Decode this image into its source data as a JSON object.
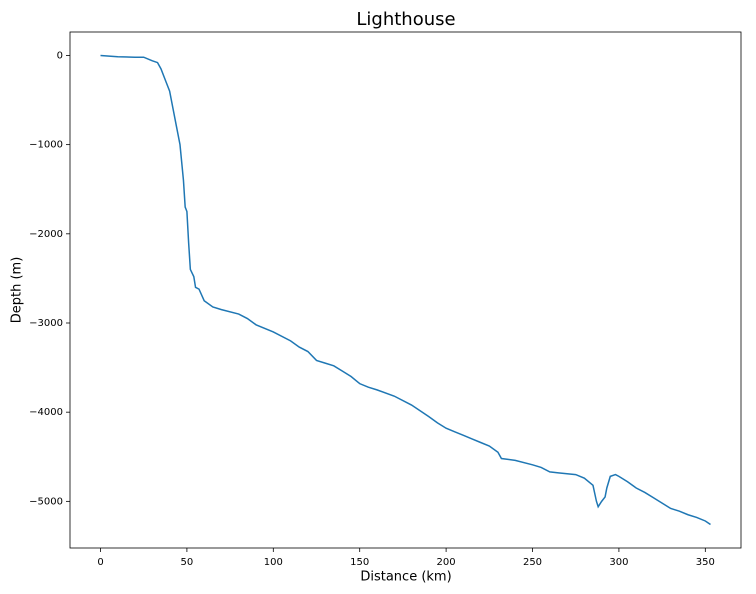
{
  "chart_data": {
    "type": "line",
    "title": "Lighthouse",
    "x_label": "Distance (km)",
    "y_label": "Depth (m)",
    "x": [
      0,
      10,
      20,
      25,
      30,
      33,
      35,
      38,
      40,
      42,
      44,
      46,
      47,
      48,
      49,
      50,
      51,
      52,
      54,
      55,
      57,
      60,
      65,
      70,
      80,
      85,
      90,
      100,
      110,
      115,
      120,
      125,
      130,
      135,
      140,
      145,
      150,
      155,
      160,
      170,
      180,
      190,
      195,
      200,
      205,
      210,
      215,
      220,
      225,
      230,
      232,
      240,
      250,
      255,
      260,
      265,
      270,
      275,
      280,
      285,
      287,
      288,
      290,
      292,
      293,
      295,
      298,
      300,
      305,
      310,
      315,
      320,
      325,
      330,
      335,
      340,
      345,
      350,
      353
    ],
    "series": [
      {
        "color": "#1f77b4",
        "values": [
          0,
          -15,
          -20,
          -20,
          -60,
          -80,
          -150,
          -300,
          -400,
          -600,
          -800,
          -1000,
          -1200,
          -1400,
          -1700,
          -1750,
          -2100,
          -2400,
          -2480,
          -2600,
          -2620,
          -2750,
          -2820,
          -2850,
          -2900,
          -2950,
          -3020,
          -3100,
          -3200,
          -3270,
          -3320,
          -3420,
          -3450,
          -3480,
          -3540,
          -3600,
          -3680,
          -3720,
          -3750,
          -3820,
          -3920,
          -4050,
          -4120,
          -4180,
          -4220,
          -4260,
          -4300,
          -4340,
          -4380,
          -4450,
          -4520,
          -4540,
          -4590,
          -4620,
          -4670,
          -4680,
          -4690,
          -4700,
          -4740,
          -4820,
          -5000,
          -5060,
          -5000,
          -4950,
          -4850,
          -4720,
          -4700,
          -4720,
          -4780,
          -4850,
          -4900,
          -4960,
          -5020,
          -5080,
          -5110,
          -5150,
          -5180,
          -5220,
          -5260
        ]
      }
    ],
    "xlim": [
      -17.65,
      370.65
    ],
    "ylim": [
      -5523,
      263
    ],
    "xticks": [
      0,
      50,
      100,
      150,
      200,
      250,
      300,
      350
    ],
    "yticks": [
      0,
      {
        "value": -1000,
        "label": "−1000"
      },
      {
        "value": -2000,
        "label": "−2000"
      },
      {
        "value": -3000,
        "label": "−3000"
      },
      {
        "value": -4000,
        "label": "−4000"
      },
      {
        "value": -5000,
        "label": "−5000"
      }
    ],
    "grid": false
  }
}
